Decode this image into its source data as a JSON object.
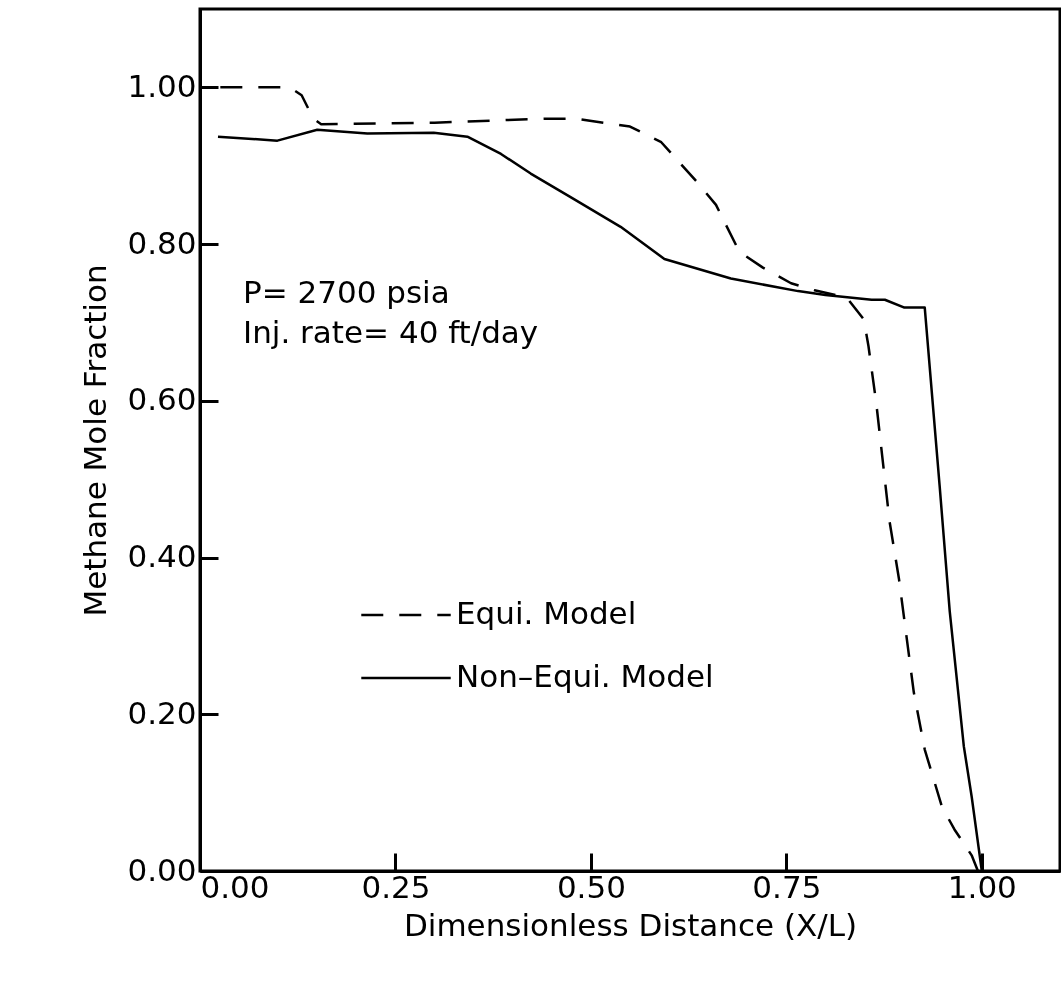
{
  "chart_data": {
    "type": "line",
    "xlabel": "Dimensionless Distance (X/L)",
    "ylabel": "Methane Mole Fraction",
    "xlim": [
      0,
      1.1
    ],
    "ylim": [
      0,
      1.1
    ],
    "xticks": [
      {
        "value": 0,
        "label": "0.00"
      },
      0.25,
      {
        "value": 0.5,
        "label": "0.50"
      },
      0.75,
      {
        "value": 1,
        "label": "1.00"
      }
    ],
    "yticks": [
      {
        "value": 0,
        "label": "0.00"
      },
      {
        "value": 0.2,
        "label": "0.20"
      },
      {
        "value": 0.4,
        "label": "0.40"
      },
      {
        "value": 0.6,
        "label": "0.60"
      },
      {
        "value": 0.8,
        "label": "0.80"
      },
      {
        "value": 1,
        "label": "1.00"
      }
    ],
    "grid": false,
    "legend": "center",
    "marker": "none",
    "annotations": [
      "P= 2700 psia",
      "Inj. rate= 40 ft/day"
    ],
    "series": [
      {
        "name": "Equi. Model",
        "color": "#000000",
        "line_style": "dashed",
        "x": [
          0.026,
          0.115,
          0.13,
          0.145,
          0.155,
          0.3,
          0.44,
          0.48,
          0.55,
          0.59,
          0.635,
          0.66,
          0.69,
          0.72,
          0.756,
          0.786,
          0.827,
          0.849,
          0.855,
          0.865,
          0.882,
          0.894,
          0.913,
          0.927,
          0.949,
          0.965,
          0.987,
          0.995
        ],
        "values": [
          1.0,
          1.0,
          0.99,
          0.96,
          0.953,
          0.955,
          0.96,
          0.96,
          0.95,
          0.93,
          0.88,
          0.85,
          0.79,
          0.77,
          0.75,
          0.741,
          0.732,
          0.704,
          0.67,
          0.597,
          0.446,
          0.373,
          0.228,
          0.155,
          0.082,
          0.053,
          0.02,
          0
        ]
      },
      {
        "name": "Non–Equi. Model",
        "color": "#000000",
        "line_style": "solid",
        "x": [
          0.023,
          0.099,
          0.15,
          0.214,
          0.299,
          0.342,
          0.385,
          0.423,
          0.474,
          0.538,
          0.594,
          0.679,
          0.765,
          0.8,
          0.859,
          0.876,
          0.901,
          0.927,
          0.946,
          0.959,
          0.977,
          0.987,
          1.0
        ],
        "values": [
          0.937,
          0.932,
          0.946,
          0.941,
          0.942,
          0.937,
          0.915,
          0.89,
          0.86,
          0.822,
          0.781,
          0.756,
          0.74,
          0.735,
          0.729,
          0.729,
          0.719,
          0.719,
          0.492,
          0.331,
          0.159,
          0.095,
          0
        ]
      }
    ]
  }
}
